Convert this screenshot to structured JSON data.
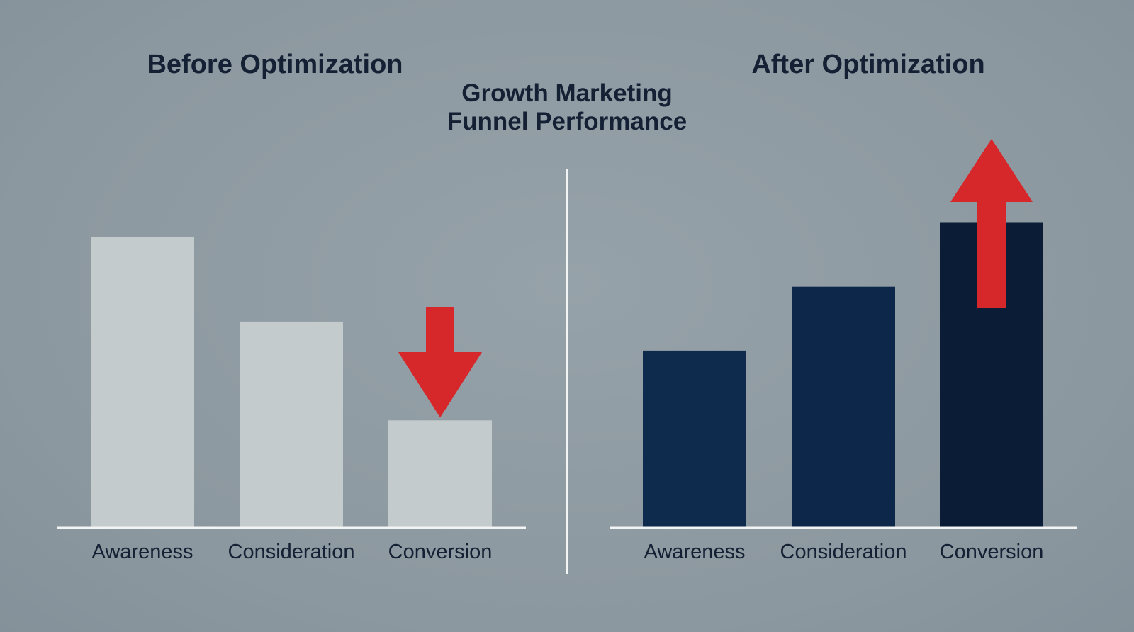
{
  "title": {
    "line1": "Growth Marketing",
    "line2": "Funnel Performance"
  },
  "colors": {
    "background": "#8e9aa1",
    "before_bar": "#c4cbcd",
    "after_bar_1": "#0e2a4c",
    "after_bar_2": "#0c2749",
    "after_bar_3": "#0a1c36",
    "arrow": "#d6282a",
    "axis": "#f3f4f4",
    "text": "#142033"
  },
  "chart_data": [
    {
      "type": "bar",
      "title": "Before Optimization",
      "categories": [
        "Awareness",
        "Consideration",
        "Conversion"
      ],
      "values": [
        100,
        71,
        37
      ],
      "ylim": [
        0,
        100
      ],
      "annotation": "down-arrow",
      "grid": false
    },
    {
      "type": "bar",
      "title": "After Optimization",
      "categories": [
        "Awareness",
        "Consideration",
        "Conversion"
      ],
      "values": [
        61,
        83,
        105
      ],
      "ylim": [
        0,
        100
      ],
      "annotation": "up-arrow",
      "grid": false
    }
  ]
}
